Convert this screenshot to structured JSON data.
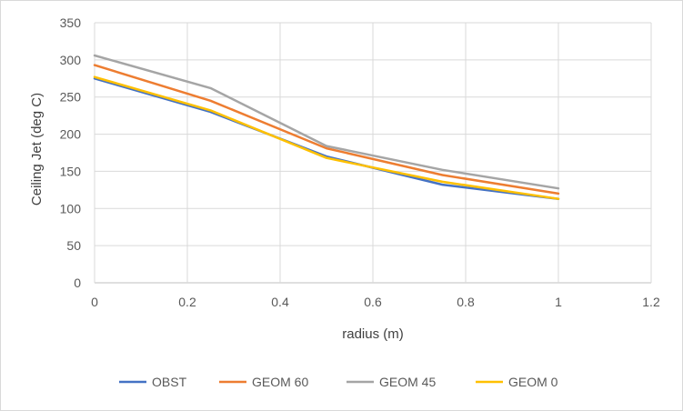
{
  "chart_data": {
    "type": "line",
    "title": "",
    "xlabel": "radius (m)",
    "ylabel": "Ceiling Jet (deg C)",
    "xlim": [
      0,
      1.2
    ],
    "ylim": [
      0,
      350
    ],
    "xticks": [
      0,
      0.2,
      0.4,
      0.6,
      0.8,
      1,
      1.2
    ],
    "yticks": [
      0,
      50,
      100,
      150,
      200,
      250,
      300,
      350
    ],
    "xtick_labels": [
      "0",
      "0.2",
      "0.4",
      "0.6",
      "0.8",
      "1",
      "1.2"
    ],
    "ytick_labels": [
      "0",
      "50",
      "100",
      "150",
      "200",
      "250",
      "300",
      "350"
    ],
    "grid": true,
    "legend_position": "bottom",
    "x": [
      0,
      0.25,
      0.5,
      0.75,
      1
    ],
    "series": [
      {
        "name": "OBST",
        "color": "#4472C4",
        "values": [
          275,
          230,
          170,
          132,
          113
        ]
      },
      {
        "name": "GEOM 60",
        "color": "#ED7D31",
        "values": [
          293,
          245,
          181,
          145,
          120
        ]
      },
      {
        "name": "GEOM 45",
        "color": "#A5A5A5",
        "values": [
          306,
          262,
          184,
          152,
          127
        ]
      },
      {
        "name": "GEOM 0",
        "color": "#FFC000",
        "values": [
          277,
          232,
          168,
          136,
          113
        ]
      }
    ]
  }
}
